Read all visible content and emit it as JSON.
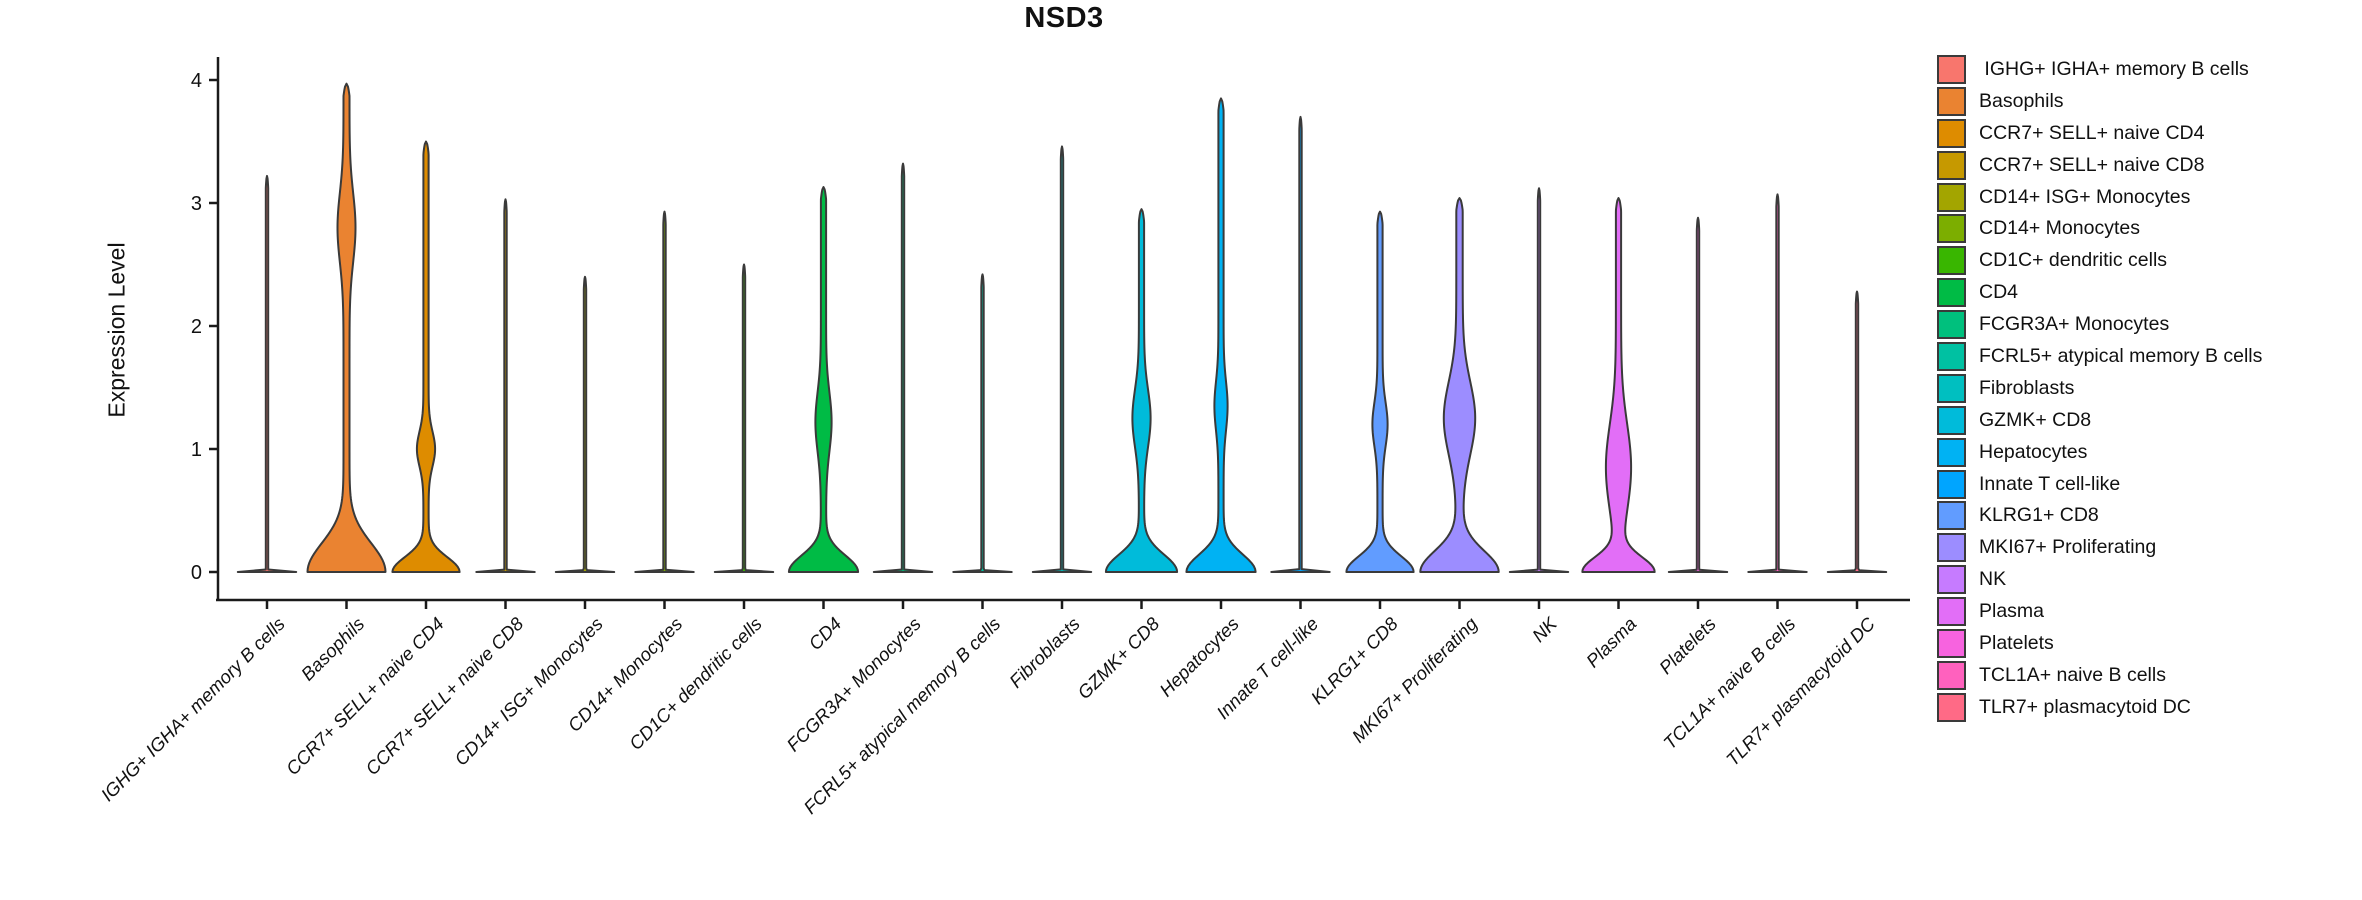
{
  "chart_data": {
    "type": "violin",
    "title": "NSD3",
    "ylabel": "Expression Level",
    "xlabel": "",
    "ylim": [
      0,
      4
    ],
    "yticks": [
      "0",
      "1",
      "2",
      "3",
      "4"
    ],
    "grid": false,
    "legend_position": "right",
    "x_tick_style": "italic, rotated 45deg",
    "outline_color": "#3A3A3A",
    "axis_color": "#1a1a1a",
    "categories": [
      {
        "label": "IGHG+ IGHA+ memory B cells",
        "color": "#F8766D",
        "max_expression": 3.22,
        "body": null
      },
      {
        "label": "Basophils",
        "color": "#EA8331",
        "max_expression": 3.97,
        "body": {
          "base_hw": 36,
          "base_s": 0.33,
          "bulge_c": 2.8,
          "bulge_s": 0.4,
          "bulge_hw": 6.0,
          "stem_hw": 3.0
        }
      },
      {
        "label": "CCR7+ SELL+ naive CD4",
        "color": "#DE8C00",
        "max_expression": 3.5,
        "body": {
          "base_hw": 31,
          "base_s": 0.17,
          "bulge_c": 1.0,
          "bulge_s": 0.2,
          "bulge_hw": 6.5,
          "stem_hw": 2.6
        }
      },
      {
        "label": "CCR7+ SELL+ naive CD8",
        "color": "#C69900",
        "max_expression": 3.03,
        "body": null
      },
      {
        "label": "CD14+ ISG+ Monocytes",
        "color": "#A3A500",
        "max_expression": 2.4,
        "body": null
      },
      {
        "label": "CD14+ Monocytes",
        "color": "#7CAE00",
        "max_expression": 2.93,
        "body": null
      },
      {
        "label": "CD1C+ dendritic cells",
        "color": "#39B600",
        "max_expression": 2.5,
        "body": null
      },
      {
        "label": "CD4",
        "color": "#00BB45",
        "max_expression": 3.13,
        "body": {
          "base_hw": 32,
          "base_s": 0.19,
          "bulge_c": 1.22,
          "bulge_s": 0.34,
          "bulge_hw": 5.5,
          "stem_hw": 2.6
        }
      },
      {
        "label": "FCGR3A+ Monocytes",
        "color": "#00C07D",
        "max_expression": 3.32,
        "body": null
      },
      {
        "label": "FCRL5+ atypical memory B cells",
        "color": "#00C1A2",
        "max_expression": 2.42,
        "body": null
      },
      {
        "label": "Fibroblasts",
        "color": "#00BFC0",
        "max_expression": 3.46,
        "body": null
      },
      {
        "label": "GZMK+ CD8",
        "color": "#00BBDA",
        "max_expression": 2.95,
        "body": {
          "base_hw": 33,
          "base_s": 0.2,
          "bulge_c": 1.25,
          "bulge_s": 0.33,
          "bulge_hw": 6.5,
          "stem_hw": 2.6
        }
      },
      {
        "label": "Hepatocytes",
        "color": "#00B2F3",
        "max_expression": 3.85,
        "body": {
          "base_hw": 32,
          "base_s": 0.2,
          "bulge_c": 1.35,
          "bulge_s": 0.28,
          "bulge_hw": 4.0,
          "stem_hw": 2.6
        }
      },
      {
        "label": "Innate T cell-like",
        "color": "#00A5FF",
        "max_expression": 3.7,
        "body": null
      },
      {
        "label": "KLRG1+ CD8",
        "color": "#619CFF",
        "max_expression": 2.93,
        "body": {
          "base_hw": 31,
          "base_s": 0.18,
          "bulge_c": 1.2,
          "bulge_s": 0.25,
          "bulge_hw": 5.0,
          "stem_hw": 2.6
        }
      },
      {
        "label": "MKI67+ Proliferating",
        "color": "#9C8DFF",
        "max_expression": 3.04,
        "body": {
          "base_hw": 36,
          "base_s": 0.24,
          "bulge_c": 1.25,
          "bulge_s": 0.42,
          "bulge_hw": 12.5,
          "stem_hw": 3.2
        }
      },
      {
        "label": "NK",
        "color": "#C67BFF",
        "max_expression": 3.12,
        "body": null
      },
      {
        "label": "Plasma",
        "color": "#E26EF7",
        "max_expression": 3.04,
        "body": {
          "base_hw": 33,
          "base_s": 0.17,
          "bulge_c": 0.85,
          "bulge_s": 0.5,
          "bulge_hw": 10.0,
          "stem_hw": 2.6
        }
      },
      {
        "label": "Platelets",
        "color": "#F763DF",
        "max_expression": 2.88,
        "body": null
      },
      {
        "label": "TCL1A+ naive B cells",
        "color": "#FF61BE",
        "max_expression": 3.07,
        "body": null
      },
      {
        "label": "TLR7+ plasmacytoid DC",
        "color": "#FF6A86",
        "max_expression": 2.28,
        "body": null
      }
    ]
  },
  "legend": {
    "labels": [
      " IGHG+ IGHA+ memory B cells",
      "Basophils",
      "CCR7+ SELL+ naive CD4",
      "CCR7+ SELL+ naive CD8",
      "CD14+ ISG+ Monocytes",
      "CD14+ Monocytes",
      "CD1C+ dendritic cells",
      "CD4",
      "FCGR3A+ Monocytes",
      "FCRL5+ atypical memory B cells",
      "Fibroblasts",
      "GZMK+ CD8",
      "Hepatocytes",
      "Innate T cell-like",
      "KLRG1+ CD8",
      "MKI67+ Proliferating",
      "NK",
      "Plasma",
      "Platelets",
      "TCL1A+ naive B cells",
      "TLR7+ plasmacytoid DC"
    ]
  }
}
